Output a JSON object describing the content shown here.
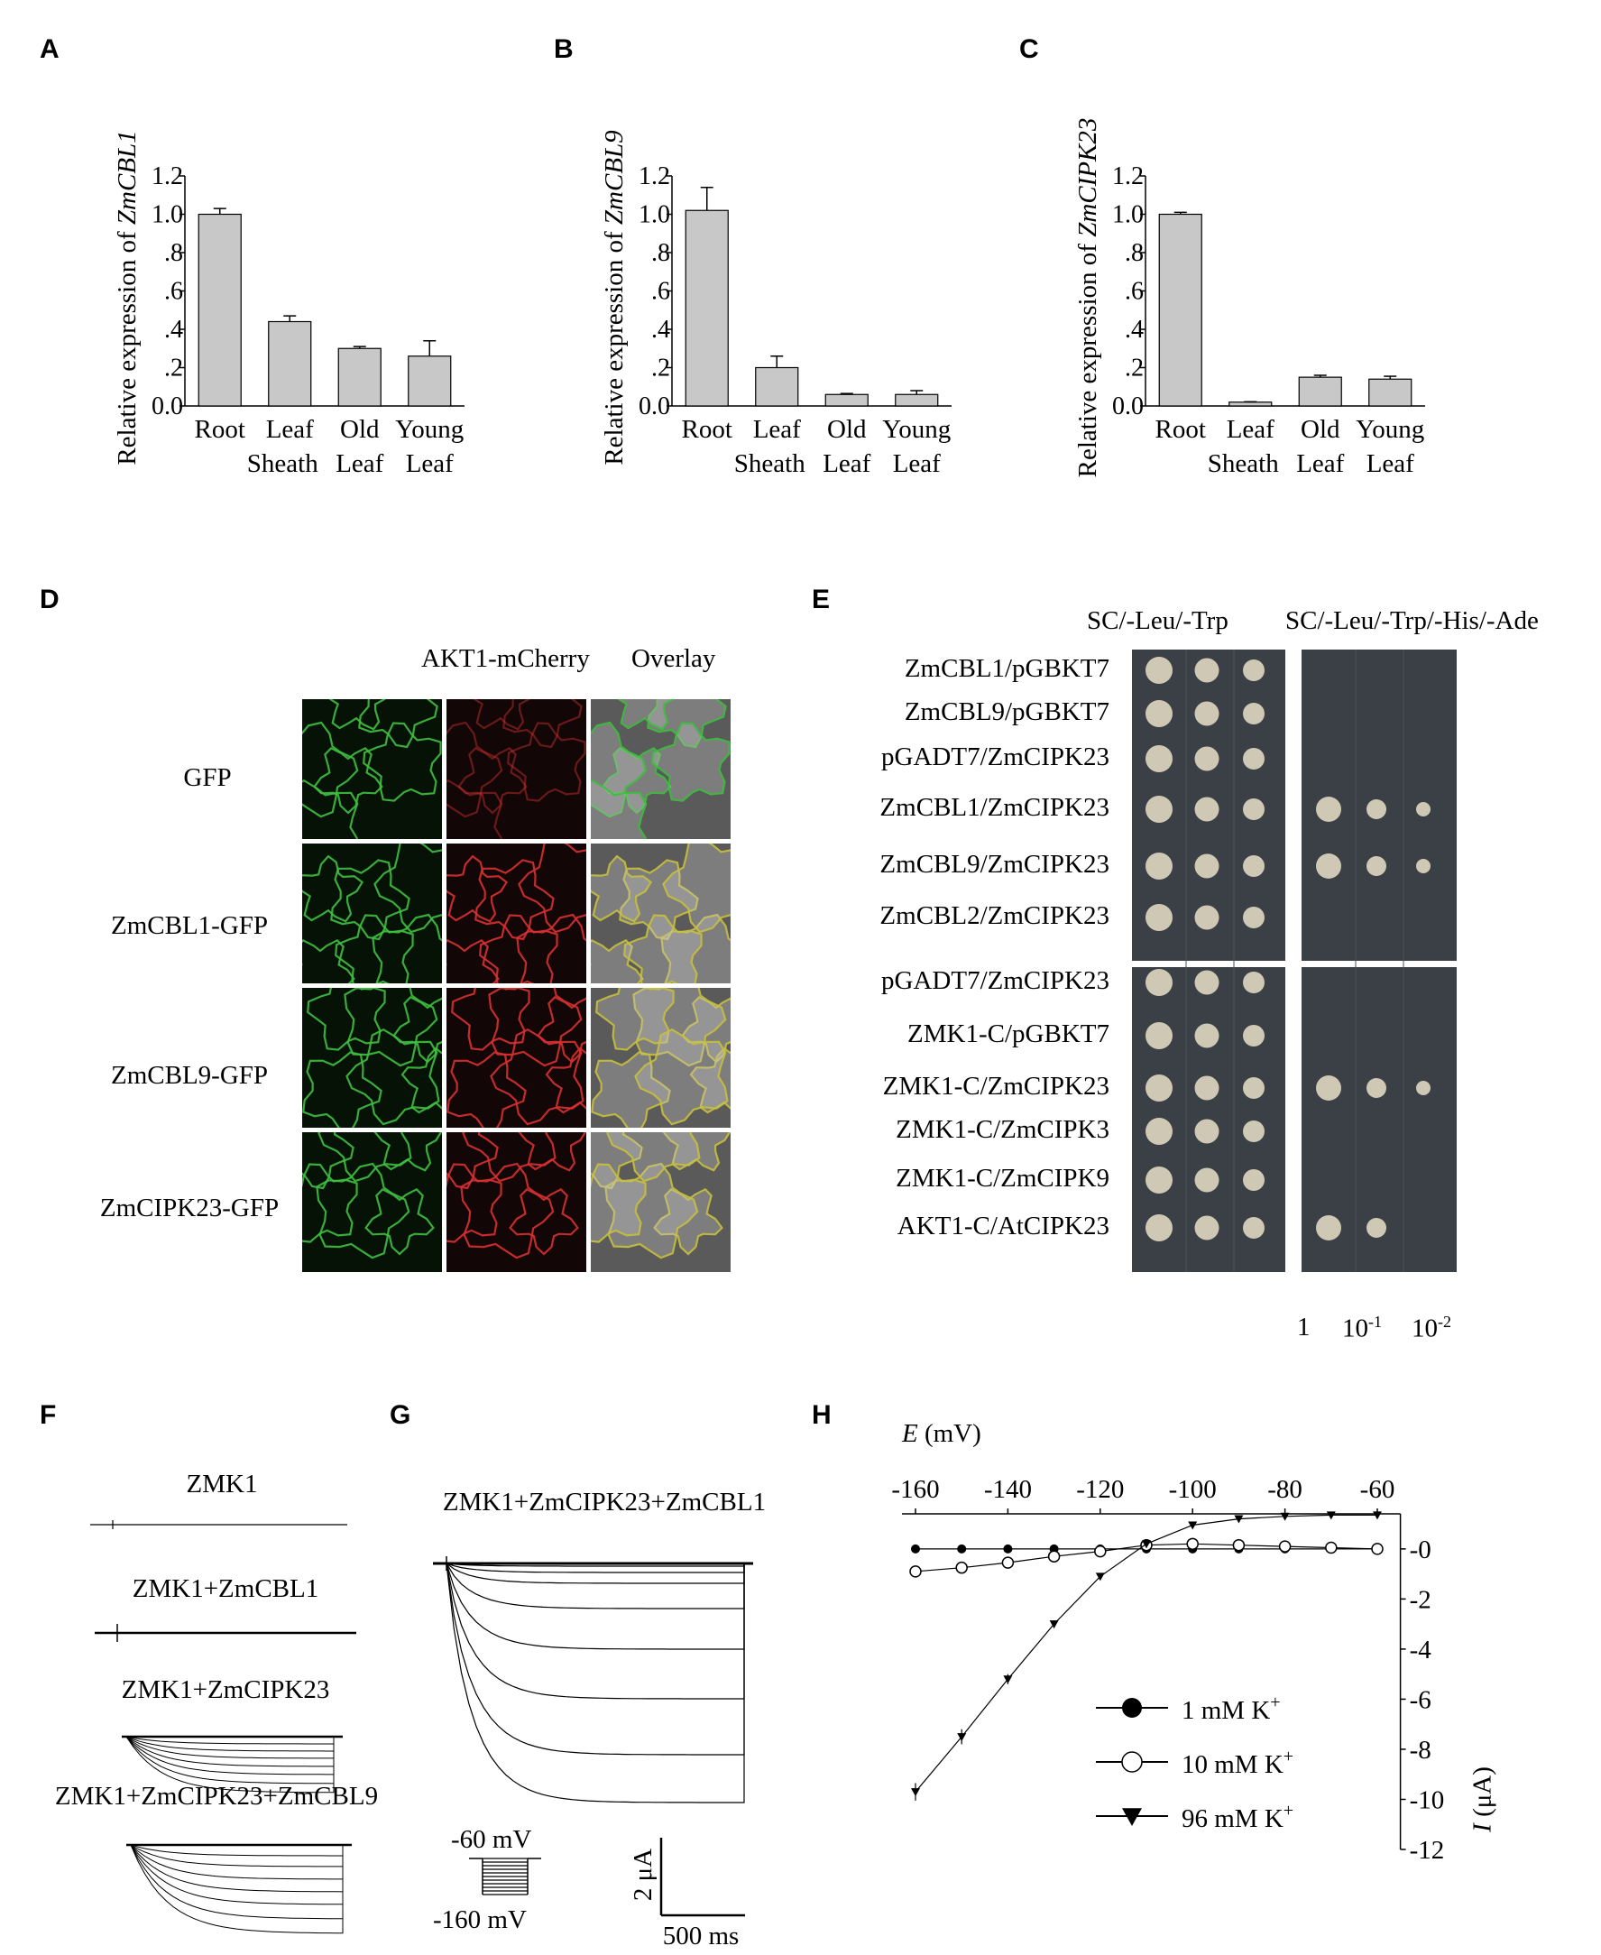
{
  "panel_labels": {
    "A": "A",
    "B": "B",
    "C": "C",
    "D": "D",
    "E": "E",
    "F": "F",
    "G": "G",
    "H": "H"
  },
  "chart_data": [
    {
      "panel": "A",
      "type": "bar",
      "categories": [
        "Root",
        "Leaf Sheath",
        "Old Leaf",
        "Young Leaf"
      ],
      "tick_row1": [
        "Root",
        "Leaf",
        "Old",
        "Young"
      ],
      "tick_row2": [
        "Sheath",
        "Leaf",
        "Leaf"
      ],
      "values": [
        1.0,
        0.44,
        0.3,
        0.26
      ],
      "errors": [
        0.03,
        0.03,
        0.01,
        0.08
      ],
      "ylabel_prefix": "Relative expression of ",
      "ylabel_gene": "ZmCBL1",
      "ylim": [
        0,
        1.2
      ],
      "yticks": [
        "0.0",
        ".2",
        ".4",
        ".6",
        ".8",
        "1.0",
        "1.2"
      ],
      "bar_color": "#c8c8c8"
    },
    {
      "panel": "B",
      "type": "bar",
      "categories": [
        "Root",
        "Leaf Sheath",
        "Old Leaf",
        "Young Leaf"
      ],
      "tick_row1": [
        "Root",
        "Leaf",
        "Old",
        "Young"
      ],
      "tick_row2": [
        "Sheath",
        "Leaf",
        "Leaf"
      ],
      "values": [
        1.02,
        0.2,
        0.06,
        0.06
      ],
      "errors": [
        0.12,
        0.06,
        0.005,
        0.02
      ],
      "ylabel_prefix": "Relative expression of ",
      "ylabel_gene": "ZmCBL9",
      "ylim": [
        0,
        1.2
      ],
      "yticks": [
        "0.0",
        ".2",
        ".4",
        ".6",
        ".8",
        "1.0",
        "1.2"
      ],
      "bar_color": "#c8c8c8"
    },
    {
      "panel": "C",
      "type": "bar",
      "categories": [
        "Root",
        "Leaf Sheath",
        "Old Leaf",
        "Young Leaf"
      ],
      "tick_row1": [
        "Root",
        "Leaf",
        "Old",
        "Young"
      ],
      "tick_row2": [
        "Sheath",
        "Leaf",
        "Leaf"
      ],
      "values": [
        1.0,
        0.02,
        0.15,
        0.14
      ],
      "errors": [
        0.01,
        0.002,
        0.01,
        0.015
      ],
      "ylabel_prefix": "Relative expression of ",
      "ylabel_gene": "ZmCIPK23",
      "ylim": [
        0,
        1.2
      ],
      "yticks": [
        "0.0",
        ".2",
        ".4",
        ".6",
        ".8",
        "1.0",
        "1.2"
      ],
      "bar_color": "#c8c8c8"
    },
    {
      "panel": "H",
      "type": "line",
      "xlabel_var": "E",
      "xlabel_unit": " (mV)",
      "xticks": [
        -160,
        -140,
        -120,
        -100,
        -80,
        -60
      ],
      "xtick_labels": [
        "-160",
        "-140",
        "-120",
        "-100",
        "-80",
        "-60"
      ],
      "xlim": [
        -160,
        -55
      ],
      "ylabel_var": "I",
      "ylabel_unit": " (μA)",
      "yticks": [
        0,
        -2,
        -4,
        -6,
        -8,
        -10,
        -12
      ],
      "ytick_labels": [
        "-0",
        "-2",
        "-4",
        "-6",
        "-8",
        "-10",
        "-12"
      ],
      "ylim": [
        -12,
        1.4
      ],
      "x": [
        -160,
        -150,
        -140,
        -130,
        -120,
        -110,
        -100,
        -90,
        -80,
        -70,
        -60
      ],
      "series": [
        {
          "name": "1 mM K+",
          "legend_text": "1 mM K",
          "marker": "filled-circle",
          "values": [
            0,
            0,
            0,
            0,
            0,
            0,
            0,
            0,
            0,
            0,
            0
          ],
          "errors": [
            0.05,
            0.05,
            0.05,
            0.05,
            0.05,
            0.05,
            0.05,
            0.05,
            0.05,
            0.05,
            0.05
          ]
        },
        {
          "name": "10 mM K+",
          "legend_text": "10 mM K",
          "marker": "open-circle",
          "values": [
            -0.9,
            -0.75,
            -0.55,
            -0.3,
            -0.1,
            0.15,
            0.2,
            0.15,
            0.1,
            0.05,
            0.0
          ],
          "errors": [
            0.1,
            0.08,
            0.06,
            0.05,
            0.05,
            0.05,
            0.05,
            0.05,
            0.05,
            0.05,
            0.05
          ]
        },
        {
          "name": "96 mM K+",
          "legend_text": "96 mM K",
          "marker": "filled-triangle",
          "values": [
            -9.7,
            -7.5,
            -5.2,
            -3.0,
            -1.1,
            0.2,
            0.95,
            1.2,
            1.3,
            1.35,
            1.35
          ],
          "errors": [
            0.35,
            0.3,
            0.2,
            0.15,
            0.1,
            0.05,
            0.05,
            0.05,
            0.05,
            0.05,
            0.05
          ]
        }
      ],
      "legend_sup": "+"
    }
  ],
  "panelD": {
    "col_headers": [
      "AKT1-mCherry",
      "Overlay"
    ],
    "rows": [
      "GFP",
      "ZmCBL1-GFP",
      "ZmCBL9-GFP",
      "ZmCIPK23-GFP"
    ]
  },
  "panelE": {
    "header_left": "SC/-Leu/-Trp",
    "header_right": "SC/-Leu/-Trp/-His/-Ade",
    "group1": [
      "ZmCBL1/pGBKT7",
      "ZmCBL9/pGBKT7",
      "pGADT7/ZmCIPK23",
      "ZmCBL1/ZmCIPK23",
      "ZmCBL9/ZmCIPK23",
      "ZmCBL2/ZmCIPK23"
    ],
    "group2": [
      "pGADT7/ZmCIPK23",
      "ZMK1-C/pGBKT7",
      "ZMK1-C/ZmCIPK23",
      "ZMK1-C/ZmCIPK3",
      "ZMK1-C/ZmCIPK9",
      "AKT1-C/AtCIPK23"
    ],
    "growth_right": [
      0,
      0,
      0,
      3,
      3,
      0,
      0,
      0,
      3,
      0,
      0,
      2
    ],
    "dilution_1": "1",
    "dilution_2_base": "10",
    "dilution_2_exp": "-1",
    "dilution_3_base": "10",
    "dilution_3_exp": "-2"
  },
  "panelF": {
    "traces": [
      "ZMK1",
      "ZMK1+ZmCBL1",
      "ZMK1+ZmCIPK23",
      "ZMK1+ZmCIPK23+ZmCBL9"
    ]
  },
  "panelG": {
    "title": "ZMK1+ZmCIPK23+ZmCBL1",
    "protocol_top": "-60 mV",
    "protocol_bottom": "-160 mV",
    "scale_current": "2 μA",
    "scale_time": "500 ms"
  }
}
